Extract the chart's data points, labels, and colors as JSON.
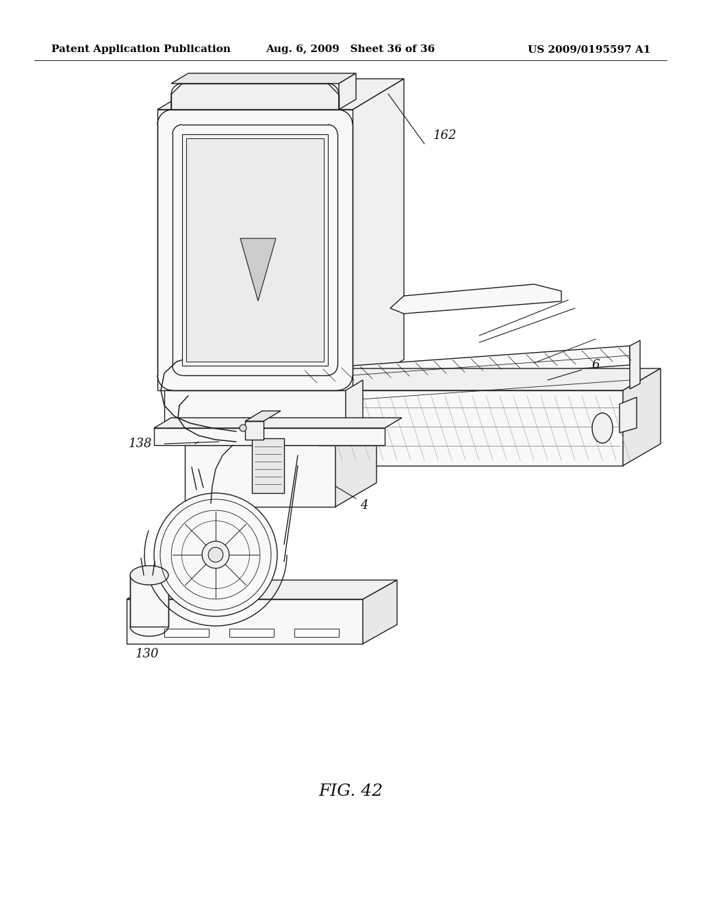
{
  "background_color": "#ffffff",
  "header_left": "Patent Application Publication",
  "header_center": "Aug. 6, 2009   Sheet 36 of 36",
  "header_right": "US 2009/0195597 A1",
  "caption": "FIG. 42",
  "lc": "#1a1a1a",
  "lw": 1.0,
  "fill_light": "#f8f8f8",
  "fill_mid": "#f0f0f0",
  "fill_dark": "#e8e8e8"
}
